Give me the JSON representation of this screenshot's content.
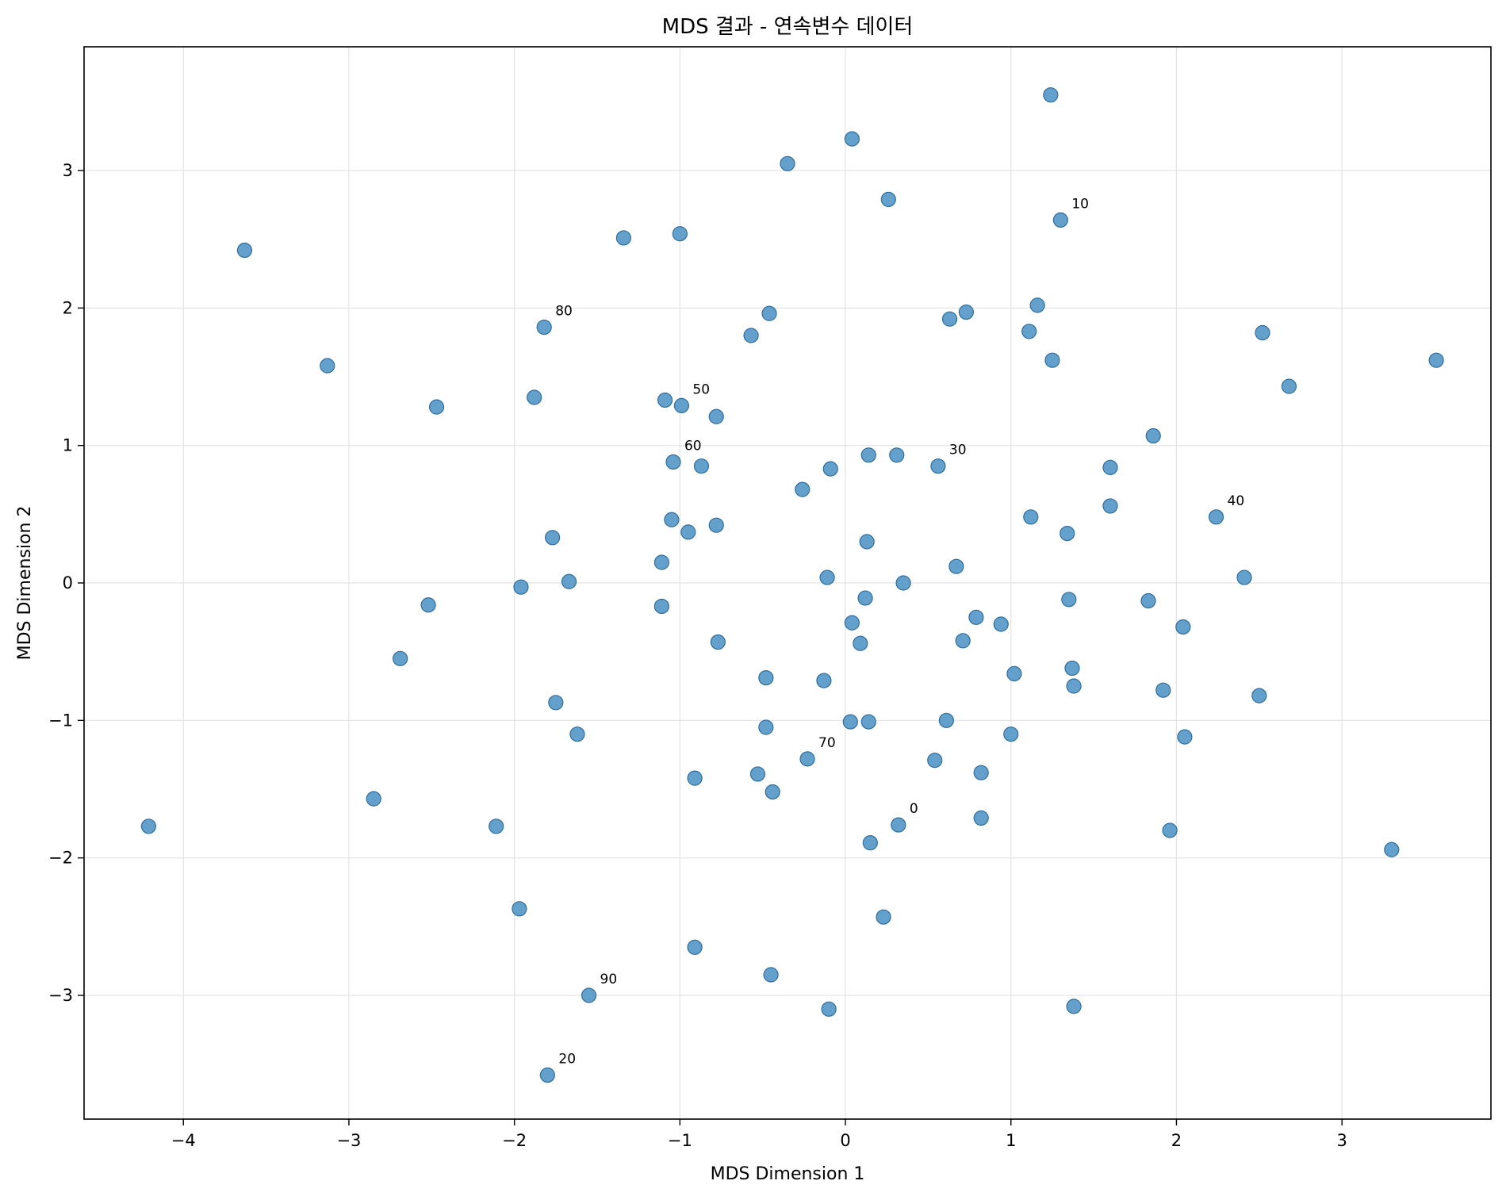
{
  "chart_data": {
    "type": "scatter",
    "title": "MDS 결과 - 연속변수 데이터",
    "xlabel": "MDS Dimension 1",
    "ylabel": "MDS Dimension 2",
    "xlim": [
      -4.6,
      3.9
    ],
    "ylim": [
      -3.9,
      3.9
    ],
    "xticks": [
      -4,
      -3,
      -2,
      -1,
      0,
      1,
      2,
      3
    ],
    "yticks": [
      -3,
      -2,
      -1,
      0,
      1,
      2,
      3
    ],
    "xtick_labels": [
      "−4",
      "−3",
      "−2",
      "−1",
      "0",
      "1",
      "2",
      "3"
    ],
    "ytick_labels": [
      "−3",
      "−2",
      "−1",
      "0",
      "1",
      "2",
      "3"
    ],
    "grid": true,
    "marker_color": "#5b9bc8",
    "points": [
      {
        "x": 0.32,
        "y": -1.76
      },
      {
        "x": 1.3,
        "y": 2.64
      },
      {
        "x": -1.8,
        "y": -3.58
      },
      {
        "x": 0.56,
        "y": 0.85
      },
      {
        "x": 2.24,
        "y": 0.48
      },
      {
        "x": -0.99,
        "y": 1.29
      },
      {
        "x": -1.04,
        "y": 0.88
      },
      {
        "x": -0.23,
        "y": -1.28
      },
      {
        "x": -1.82,
        "y": 1.86
      },
      {
        "x": -1.55,
        "y": -3.0
      },
      {
        "x": -4.21,
        "y": -1.77
      },
      {
        "x": -3.63,
        "y": 2.42
      },
      {
        "x": -3.13,
        "y": 1.58
      },
      {
        "x": -2.47,
        "y": 1.28
      },
      {
        "x": -2.52,
        "y": -0.16
      },
      {
        "x": -2.69,
        "y": -0.55
      },
      {
        "x": -2.85,
        "y": -1.57
      },
      {
        "x": -2.11,
        "y": -1.77
      },
      {
        "x": -1.97,
        "y": -2.37
      },
      {
        "x": -1.96,
        "y": -0.03
      },
      {
        "x": -1.88,
        "y": 1.35
      },
      {
        "x": -1.77,
        "y": 0.33
      },
      {
        "x": -1.75,
        "y": -0.87
      },
      {
        "x": -1.67,
        "y": 0.01
      },
      {
        "x": -1.62,
        "y": -1.1
      },
      {
        "x": -1.34,
        "y": 2.51
      },
      {
        "x": -1.09,
        "y": 1.33
      },
      {
        "x": -1.05,
        "y": 0.46
      },
      {
        "x": -1.11,
        "y": 0.15
      },
      {
        "x": -1.11,
        "y": -0.17
      },
      {
        "x": -1.0,
        "y": 2.54
      },
      {
        "x": -0.95,
        "y": 0.37
      },
      {
        "x": -0.87,
        "y": 0.85
      },
      {
        "x": -0.78,
        "y": 1.21
      },
      {
        "x": -0.78,
        "y": 0.42
      },
      {
        "x": -0.77,
        "y": -0.43
      },
      {
        "x": -0.91,
        "y": -1.42
      },
      {
        "x": -0.91,
        "y": -2.65
      },
      {
        "x": -0.35,
        "y": 3.05
      },
      {
        "x": -0.46,
        "y": 1.96
      },
      {
        "x": -0.57,
        "y": 1.8
      },
      {
        "x": -0.26,
        "y": 0.68
      },
      {
        "x": -0.48,
        "y": -0.69
      },
      {
        "x": -0.48,
        "y": -1.05
      },
      {
        "x": -0.53,
        "y": -1.39
      },
      {
        "x": -0.44,
        "y": -1.52
      },
      {
        "x": -0.45,
        "y": -2.85
      },
      {
        "x": -0.1,
        "y": -3.1
      },
      {
        "x": 0.04,
        "y": 3.23
      },
      {
        "x": 0.26,
        "y": 2.79
      },
      {
        "x": -0.09,
        "y": 0.83
      },
      {
        "x": 0.14,
        "y": 0.93
      },
      {
        "x": 0.31,
        "y": 0.93
      },
      {
        "x": 0.13,
        "y": 0.3
      },
      {
        "x": -0.11,
        "y": 0.04
      },
      {
        "x": 0.12,
        "y": -0.11
      },
      {
        "x": 0.35,
        "y": 0.0
      },
      {
        "x": 0.04,
        "y": -0.29
      },
      {
        "x": 0.09,
        "y": -0.44
      },
      {
        "x": -0.13,
        "y": -0.71
      },
      {
        "x": 0.03,
        "y": -1.01
      },
      {
        "x": 0.14,
        "y": -1.01
      },
      {
        "x": 0.15,
        "y": -1.89
      },
      {
        "x": 0.23,
        "y": -2.43
      },
      {
        "x": 0.63,
        "y": 1.92
      },
      {
        "x": 0.73,
        "y": 1.97
      },
      {
        "x": 0.67,
        "y": 0.12
      },
      {
        "x": 0.79,
        "y": -0.25
      },
      {
        "x": 0.71,
        "y": -0.42
      },
      {
        "x": 0.94,
        "y": -0.3
      },
      {
        "x": 0.61,
        "y": -1.0
      },
      {
        "x": 0.54,
        "y": -1.29
      },
      {
        "x": 0.82,
        "y": -1.38
      },
      {
        "x": 0.82,
        "y": -1.71
      },
      {
        "x": 1.24,
        "y": 3.55
      },
      {
        "x": 1.16,
        "y": 2.02
      },
      {
        "x": 1.11,
        "y": 1.83
      },
      {
        "x": 1.25,
        "y": 1.62
      },
      {
        "x": 1.12,
        "y": 0.48
      },
      {
        "x": 1.34,
        "y": 0.36
      },
      {
        "x": 1.35,
        "y": -0.12
      },
      {
        "x": 1.02,
        "y": -0.66
      },
      {
        "x": 1.37,
        "y": -0.62
      },
      {
        "x": 1.38,
        "y": -0.75
      },
      {
        "x": 1.0,
        "y": -1.1
      },
      {
        "x": 1.38,
        "y": -3.08
      },
      {
        "x": 1.86,
        "y": 1.07
      },
      {
        "x": 1.6,
        "y": 0.84
      },
      {
        "x": 1.6,
        "y": 0.56
      },
      {
        "x": 1.83,
        "y": -0.13
      },
      {
        "x": 2.04,
        "y": -0.32
      },
      {
        "x": 1.92,
        "y": -0.78
      },
      {
        "x": 2.05,
        "y": -1.12
      },
      {
        "x": 1.96,
        "y": -1.8
      },
      {
        "x": 2.52,
        "y": 1.82
      },
      {
        "x": 2.68,
        "y": 1.43
      },
      {
        "x": 2.41,
        "y": 0.04
      },
      {
        "x": 2.5,
        "y": -0.82
      },
      {
        "x": 3.3,
        "y": -1.94
      },
      {
        "x": 3.57,
        "y": 1.62
      }
    ],
    "annotations": [
      {
        "text": "0",
        "x": 0.32,
        "y": -1.76
      },
      {
        "text": "10",
        "x": 1.3,
        "y": 2.64
      },
      {
        "text": "20",
        "x": -1.8,
        "y": -3.58
      },
      {
        "text": "30",
        "x": 0.56,
        "y": 0.85
      },
      {
        "text": "40",
        "x": 2.24,
        "y": 0.48
      },
      {
        "text": "50",
        "x": -0.99,
        "y": 1.29
      },
      {
        "text": "60",
        "x": -1.04,
        "y": 0.88
      },
      {
        "text": "70",
        "x": -0.23,
        "y": -1.28
      },
      {
        "text": "80",
        "x": -1.82,
        "y": 1.86
      },
      {
        "text": "90",
        "x": -1.55,
        "y": -3.0
      }
    ]
  }
}
